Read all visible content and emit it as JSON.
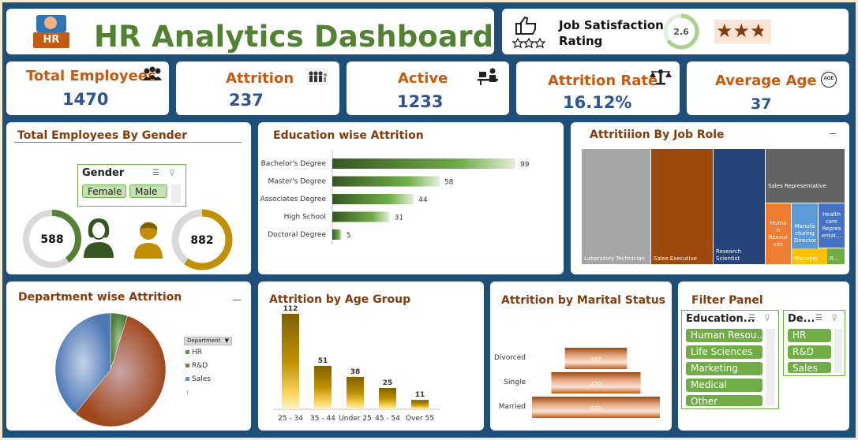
{
  "header": {
    "logo_text": "HR",
    "title": "HR Analytics Dashboard"
  },
  "satisfaction": {
    "label_line1": "Job Satisfaction",
    "label_line2": "Rating",
    "value": "2.6",
    "gauge_fraction": 0.65,
    "stars_filled": 2.6,
    "stars_total": 3
  },
  "kpis": {
    "total_employees": {
      "label": "Total Employees",
      "value": "1470"
    },
    "attrition": {
      "label": "Attrition",
      "value": "237"
    },
    "active": {
      "label": "Active",
      "value": "1233"
    },
    "attrition_rate": {
      "label": "Attrition Rate",
      "value": "16.12%"
    },
    "average_age": {
      "label": "Average Age",
      "value": "37",
      "icon_text": "AGE"
    }
  },
  "gender_panel": {
    "title": "Total Employees By Gender",
    "slicer_title": "Gender",
    "options": [
      "Female",
      "Male"
    ],
    "female_count": "588",
    "male_count": "882",
    "female_fraction": 0.4,
    "male_fraction": 0.6
  },
  "education_panel": {
    "title": "Education wise Attrition"
  },
  "jobrole_panel": {
    "title": "Attritiiion By Job Role",
    "cells": [
      {
        "label": "Laboratory Technician",
        "color": "#a5a5a5"
      },
      {
        "label": "Sales Executive",
        "color": "#9e480e"
      },
      {
        "label": "Research Scientist",
        "color": "#264478"
      },
      {
        "label": "Sales Representative",
        "color": "#636363"
      },
      {
        "label": "Huma n Resour ces",
        "color": "#ed7d31"
      },
      {
        "label": "Manufa cturing Director",
        "color": "#5b9bd5"
      },
      {
        "label": "Health care Repres entat...",
        "color": "#4472c4"
      },
      {
        "label": "Manager",
        "color": "#ffc000"
      },
      {
        "label": "R...",
        "color": "#70ad47"
      }
    ]
  },
  "department_panel": {
    "title": "Department wise Attrition",
    "legend_title": "Department",
    "legend": [
      {
        "name": "HR",
        "color": "#6b8f5b"
      },
      {
        "name": "R&D",
        "color": "#a5674d"
      },
      {
        "name": "Sales",
        "color": "#6a8fc0"
      }
    ]
  },
  "age_panel": {
    "title": "Attrition by Age Group"
  },
  "marital_panel": {
    "title": "Attrition by Marital Status"
  },
  "filter_panel": {
    "title": "Filter Panel",
    "education_slicer": {
      "title": "Education...",
      "options": [
        "Human Resou...",
        "Life Sciences",
        "Marketing",
        "Medical",
        "Other"
      ]
    },
    "department_slicer": {
      "title": "De...",
      "options": [
        "HR",
        "R&D",
        "Sales"
      ]
    }
  },
  "chart_data": [
    {
      "type": "bar",
      "orientation": "horizontal",
      "categories": [
        "Bachelor's Degree",
        "Master's Degree",
        "Associates Degree",
        "High School",
        "Doctoral Degree"
      ],
      "values": [
        99,
        58,
        44,
        31,
        5
      ],
      "xlim": [
        0,
        99
      ]
    },
    {
      "type": "bar",
      "categories": [
        "25 - 34",
        "35 - 44",
        "Under 25",
        "45 - 54",
        "Over 55"
      ],
      "values": [
        112,
        51,
        38,
        25,
        11
      ],
      "ylim": [
        0,
        112
      ]
    },
    {
      "type": "bar",
      "orientation": "horizontal",
      "style": "funnel",
      "categories": [
        "Divorced",
        "Single",
        "Married"
      ],
      "values": [
        327,
        470,
        673
      ],
      "xlim": [
        0,
        673
      ]
    },
    {
      "type": "pie",
      "categories": [
        "HR",
        "R&D",
        "Sales"
      ],
      "values": [
        5,
        56,
        39
      ]
    }
  ]
}
